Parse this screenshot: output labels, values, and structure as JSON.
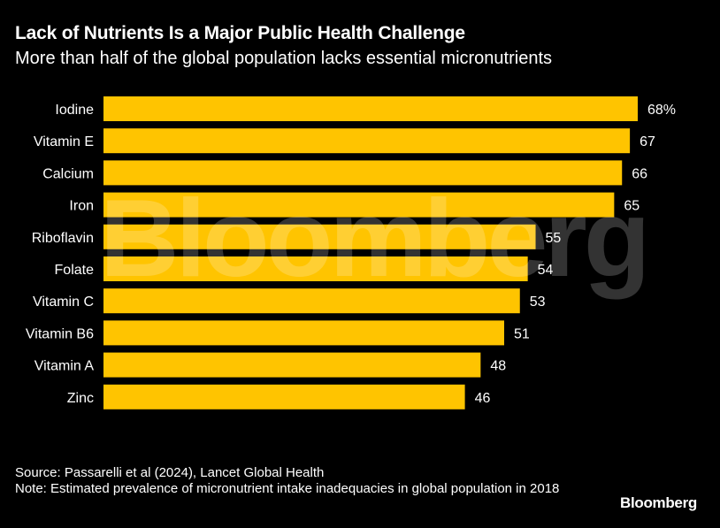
{
  "header": {
    "title": "Lack of Nutrients Is a Major Public Health Challenge",
    "subtitle": "More than half of the global population lacks essential micronutrients"
  },
  "chart_data": {
    "type": "bar",
    "orientation": "horizontal",
    "title": "Lack of Nutrients Is a Major Public Health Challenge",
    "subtitle": "More than half of the global population lacks essential micronutrients",
    "categories": [
      "Iodine",
      "Vitamin E",
      "Calcium",
      "Iron",
      "Riboflavin",
      "Folate",
      "Vitamin C",
      "Vitamin B6",
      "Vitamin A",
      "Zinc"
    ],
    "values": [
      68,
      67,
      66,
      65,
      55,
      54,
      53,
      51,
      48,
      46
    ],
    "value_labels": [
      "68%",
      "67",
      "66",
      "65",
      "55",
      "54",
      "53",
      "51",
      "48",
      "46"
    ],
    "unit": "%",
    "xlim": [
      0,
      68
    ],
    "bar_color": "#ffc400",
    "grid": false,
    "legend": "none"
  },
  "watermark": "Bloomberg",
  "footer": {
    "source": "Source: Passarelli et al (2024), Lancet Global Health",
    "note": "Note: Estimated prevalence of micronutrient intake inadequacies in global population in 2018",
    "logo": "Bloomberg"
  },
  "colors": {
    "background": "#000000",
    "text": "#ffffff",
    "bar": "#ffc400"
  }
}
